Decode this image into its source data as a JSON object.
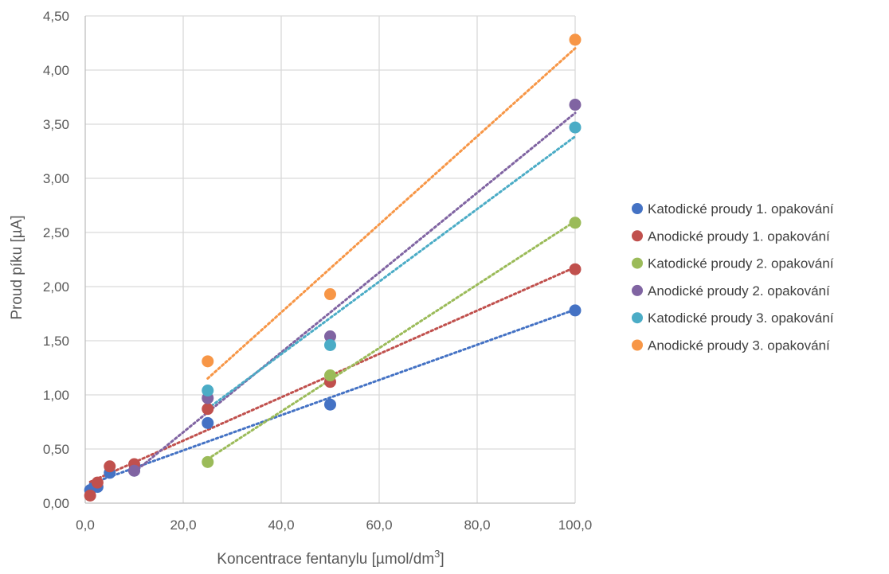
{
  "chart_data": {
    "type": "scatter",
    "title": "",
    "xlabel": {
      "main": "Koncentrace fentanylu [µmol/dm",
      "sup": "3",
      "end": "]"
    },
    "ylabel": "Proud píku [µA]",
    "xlim": [
      0,
      100
    ],
    "ylim": [
      0,
      4.5
    ],
    "x_ticks": [
      "0,0",
      "20,0",
      "40,0",
      "60,0",
      "80,0",
      "100,0"
    ],
    "y_ticks": [
      "0,00",
      "0,50",
      "1,00",
      "1,50",
      "2,00",
      "2,50",
      "3,00",
      "3,50",
      "4,00",
      "4,50"
    ],
    "grid": true,
    "trendlines": "linear, dotted",
    "legend_position": "right",
    "series": [
      {
        "name": "Katodické proudy 1. opakování",
        "color": "#4472C4",
        "points": [
          [
            1,
            0.12
          ],
          [
            2.5,
            0.15
          ],
          [
            5,
            0.28
          ],
          [
            10,
            0.3
          ],
          [
            25,
            0.74
          ],
          [
            50,
            0.91
          ],
          [
            100,
            1.78
          ]
        ]
      },
      {
        "name": "Anodické proudy 1. opakování",
        "color": "#C0504D",
        "points": [
          [
            1,
            0.07
          ],
          [
            2.5,
            0.19
          ],
          [
            5,
            0.34
          ],
          [
            10,
            0.36
          ],
          [
            25,
            0.87
          ],
          [
            50,
            1.12
          ],
          [
            100,
            2.16
          ]
        ]
      },
      {
        "name": "Katodické proudy 2. opakování",
        "color": "#9BBB59",
        "points": [
          [
            25,
            0.38
          ],
          [
            50,
            1.18
          ],
          [
            100,
            2.59
          ]
        ]
      },
      {
        "name": "Anodické proudy 2. opakování",
        "color": "#8064A2",
        "points": [
          [
            10,
            0.3
          ],
          [
            25,
            0.97
          ],
          [
            50,
            1.54
          ],
          [
            100,
            3.68
          ]
        ]
      },
      {
        "name": "Katodické proudy 3. opakování",
        "color": "#4BACC6",
        "points": [
          [
            25,
            1.04
          ],
          [
            50,
            1.46
          ],
          [
            100,
            3.47
          ]
        ]
      },
      {
        "name": "Anodické proudy 3. opakování",
        "color": "#F79646",
        "points": [
          [
            25,
            1.31
          ],
          [
            50,
            1.93
          ],
          [
            100,
            4.28
          ]
        ]
      }
    ]
  }
}
